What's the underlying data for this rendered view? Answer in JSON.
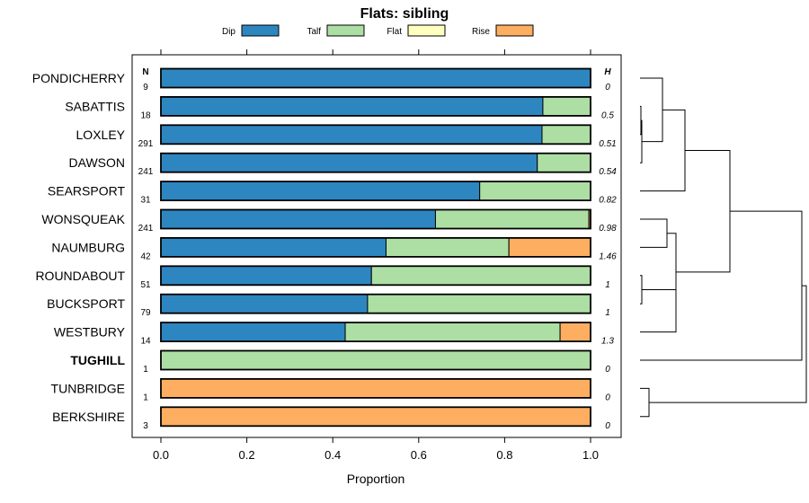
{
  "chart_data": {
    "type": "bar",
    "orientation": "horizontal",
    "stacked": true,
    "title": "Flats: sibling",
    "xlabel": "Proportion",
    "ylabel": "",
    "xlim": [
      0,
      1
    ],
    "xticks": [
      "0.0",
      "0.2",
      "0.4",
      "0.6",
      "0.8",
      "1.0"
    ],
    "n_header": "N",
    "h_header": "H",
    "legend": {
      "placement": "top-center",
      "entries": [
        {
          "name": "Dip",
          "color": "#2e86c1"
        },
        {
          "name": "Talf",
          "color": "#addfa4"
        },
        {
          "name": "Flat",
          "color": "#ffffbf"
        },
        {
          "name": "Rise",
          "color": "#fdae61"
        }
      ]
    },
    "rows": [
      {
        "label": "PONDICHERRY",
        "n": "9",
        "h": "0",
        "bold": false,
        "values": [
          1.0,
          0.0,
          0.0,
          0.0
        ]
      },
      {
        "label": "SABATTIS",
        "n": "18",
        "h": "0.5",
        "bold": false,
        "values": [
          0.889,
          0.111,
          0.0,
          0.0
        ]
      },
      {
        "label": "LOXLEY",
        "n": "291",
        "h": "0.51",
        "bold": false,
        "values": [
          0.887,
          0.113,
          0.0,
          0.0
        ]
      },
      {
        "label": "DAWSON",
        "n": "241",
        "h": "0.54",
        "bold": false,
        "values": [
          0.876,
          0.124,
          0.0,
          0.0
        ]
      },
      {
        "label": "SEARSPORT",
        "n": "31",
        "h": "0.82",
        "bold": false,
        "values": [
          0.742,
          0.258,
          0.0,
          0.0
        ]
      },
      {
        "label": "WONSQUEAK",
        "n": "241",
        "h": "0.98",
        "bold": false,
        "values": [
          0.639,
          0.357,
          0.0,
          0.004
        ]
      },
      {
        "label": "NAUMBURG",
        "n": "42",
        "h": "1.46",
        "bold": false,
        "values": [
          0.524,
          0.286,
          0.0,
          0.19
        ]
      },
      {
        "label": "ROUNDABOUT",
        "n": "51",
        "h": "1",
        "bold": false,
        "values": [
          0.49,
          0.51,
          0.0,
          0.0
        ]
      },
      {
        "label": "BUCKSPORT",
        "n": "79",
        "h": "1",
        "bold": false,
        "values": [
          0.481,
          0.519,
          0.0,
          0.0
        ]
      },
      {
        "label": "WESTBURY",
        "n": "14",
        "h": "1.3",
        "bold": false,
        "values": [
          0.429,
          0.5,
          0.0,
          0.071
        ]
      },
      {
        "label": "TUGHILL",
        "n": "1",
        "h": "0",
        "bold": true,
        "values": [
          0.0,
          1.0,
          0.0,
          0.0
        ]
      },
      {
        "label": "TUNBRIDGE",
        "n": "1",
        "h": "0",
        "bold": false,
        "values": [
          0.0,
          0.0,
          0.0,
          1.0
        ]
      },
      {
        "label": "BERKSHIRE",
        "n": "3",
        "h": "0",
        "bold": false,
        "values": [
          0.0,
          0.0,
          0.0,
          1.0
        ]
      }
    ],
    "dendrogram": {
      "side": "right",
      "leaves": [
        "PONDICHERRY",
        "SABATTIS",
        "LOXLEY",
        "DAWSON",
        "SEARSPORT",
        "WONSQUEAK",
        "NAUMBURG",
        "ROUNDABOUT",
        "BUCKSPORT",
        "WESTBURY",
        "TUGHILL",
        "TUNBRIDGE",
        "BERKSHIRE"
      ],
      "merges": [
        {
          "a": "L1",
          "b": "L2",
          "height": 0.01
        },
        {
          "a": "M1",
          "b": "L3",
          "height": 0.02
        },
        {
          "a": "L0",
          "b": "M2",
          "height": 0.25
        },
        {
          "a": "M3",
          "b": "L4",
          "height": 0.5
        },
        {
          "a": "L7",
          "b": "L8",
          "height": 0.02
        },
        {
          "a": "M5",
          "b": "L9",
          "height": 0.4
        },
        {
          "a": "L5",
          "b": "L6",
          "height": 0.3
        },
        {
          "a": "M7",
          "b": "M6",
          "height": 0.4
        },
        {
          "a": "M4",
          "b": "M8",
          "height": 1.0
        },
        {
          "a": "M9",
          "b": "L10",
          "height": 1.8
        },
        {
          "a": "L11",
          "b": "L12",
          "height": 0.1
        },
        {
          "a": "M10",
          "b": "M11",
          "height": 1.85
        }
      ]
    }
  }
}
